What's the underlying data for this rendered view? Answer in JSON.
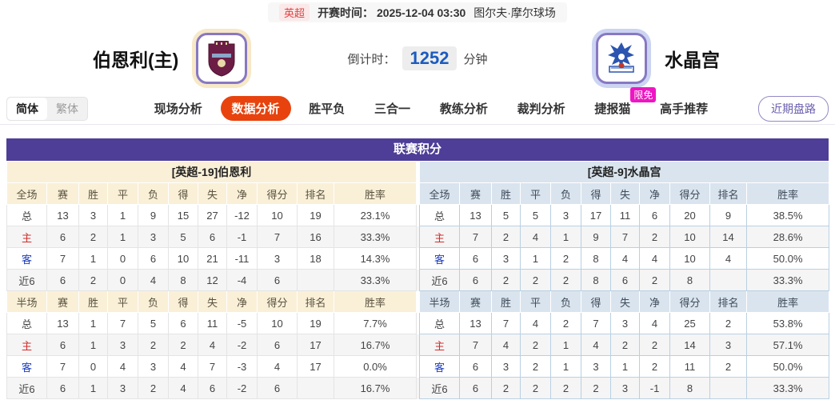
{
  "topbar": {
    "league": "英超",
    "kickoff_label": "开赛时间：",
    "kickoff_time": "2025-12-04 03:30",
    "venue": "图尔夫·摩尔球场"
  },
  "header": {
    "home_name": "伯恩利(主)",
    "away_name": "水晶宫",
    "countdown_label": "倒计时：",
    "countdown_value": "1252",
    "countdown_unit": "分钟"
  },
  "nav": {
    "lang_simplified": "简体",
    "lang_traditional": "繁体",
    "tabs": [
      {
        "label": "现场分析",
        "active": false
      },
      {
        "label": "数据分析",
        "active": true
      },
      {
        "label": "胜平负",
        "active": false
      },
      {
        "label": "三合一",
        "active": false
      },
      {
        "label": "教练分析",
        "active": false
      },
      {
        "label": "裁判分析",
        "active": false
      },
      {
        "label": "捷报猫",
        "active": false,
        "badge": "限免"
      },
      {
        "label": "高手推荐",
        "active": false
      }
    ],
    "recent_button": "近期盘路"
  },
  "league_table": {
    "title": "联赛积分",
    "home_section_header": "[英超-19]伯恩利",
    "away_section_header": "[英超-9]水晶宫",
    "columns_full": [
      "全场",
      "赛",
      "胜",
      "平",
      "负",
      "得",
      "失",
      "净",
      "得分",
      "排名",
      "胜率"
    ],
    "columns_half": [
      "半场",
      "赛",
      "胜",
      "平",
      "负",
      "得",
      "失",
      "净",
      "得分",
      "排名",
      "胜率"
    ],
    "home_full_rows": [
      [
        "总",
        "13",
        "3",
        "1",
        "9",
        "15",
        "27",
        "-12",
        "10",
        "19",
        "23.1%"
      ],
      [
        "主",
        "6",
        "2",
        "1",
        "3",
        "5",
        "6",
        "-1",
        "7",
        "16",
        "33.3%"
      ],
      [
        "客",
        "7",
        "1",
        "0",
        "6",
        "10",
        "21",
        "-11",
        "3",
        "18",
        "14.3%"
      ],
      [
        "近6",
        "6",
        "2",
        "0",
        "4",
        "8",
        "12",
        "-4",
        "6",
        "",
        "33.3%"
      ]
    ],
    "home_half_rows": [
      [
        "总",
        "13",
        "1",
        "7",
        "5",
        "6",
        "11",
        "-5",
        "10",
        "19",
        "7.7%"
      ],
      [
        "主",
        "6",
        "1",
        "3",
        "2",
        "2",
        "4",
        "-2",
        "6",
        "17",
        "16.7%"
      ],
      [
        "客",
        "7",
        "0",
        "4",
        "3",
        "4",
        "7",
        "-3",
        "4",
        "17",
        "0.0%"
      ],
      [
        "近6",
        "6",
        "1",
        "3",
        "2",
        "4",
        "6",
        "-2",
        "6",
        "",
        "16.7%"
      ]
    ],
    "away_full_rows": [
      [
        "总",
        "13",
        "5",
        "5",
        "3",
        "17",
        "11",
        "6",
        "20",
        "9",
        "38.5%"
      ],
      [
        "主",
        "7",
        "2",
        "4",
        "1",
        "9",
        "7",
        "2",
        "10",
        "14",
        "28.6%"
      ],
      [
        "客",
        "6",
        "3",
        "1",
        "2",
        "8",
        "4",
        "4",
        "10",
        "4",
        "50.0%"
      ],
      [
        "近6",
        "6",
        "2",
        "2",
        "2",
        "8",
        "6",
        "2",
        "8",
        "",
        "33.3%"
      ]
    ],
    "away_half_rows": [
      [
        "总",
        "13",
        "7",
        "4",
        "2",
        "7",
        "3",
        "4",
        "25",
        "2",
        "53.8%"
      ],
      [
        "主",
        "7",
        "4",
        "2",
        "1",
        "4",
        "2",
        "2",
        "14",
        "3",
        "57.1%"
      ],
      [
        "客",
        "6",
        "3",
        "2",
        "1",
        "3",
        "1",
        "2",
        "11",
        "2",
        "50.0%"
      ],
      [
        "近6",
        "6",
        "2",
        "2",
        "2",
        "2",
        "3",
        "-1",
        "8",
        "",
        "33.3%"
      ]
    ]
  },
  "colors": {
    "table_header_purple": "#4e3e97",
    "active_tab_orange": "#e8430e",
    "badge_magenta": "#ee16c3",
    "home_section_bg": "#faf0d8",
    "away_section_bg": "#d9e4ee",
    "home_label_red": "#d42b2b",
    "away_label_blue": "#1f3ec0",
    "countdown_blue": "#1b5bbf",
    "league_badge_red": "#e04343"
  }
}
